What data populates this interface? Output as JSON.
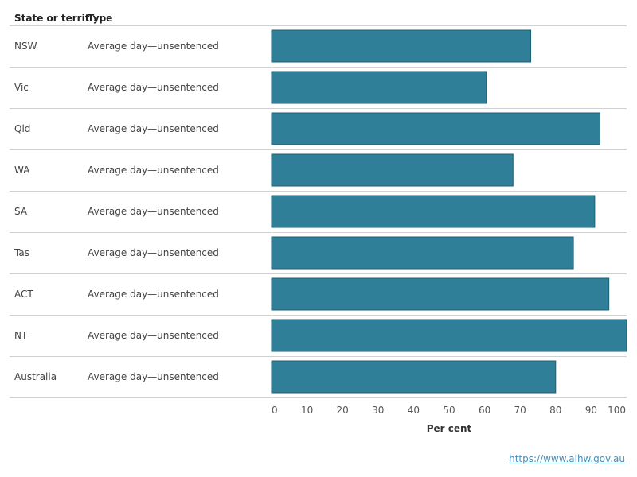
{
  "header": {
    "col1": "State or territ..",
    "col2": "Type"
  },
  "source_link": "https://www.aihw.gov.au",
  "colors": {
    "bar": "#2e7f97",
    "bar_stroke": "#1f5f73",
    "grid": "#d0d0d0",
    "axis": "#888888"
  },
  "chart_data": {
    "type": "bar",
    "orientation": "horizontal",
    "categories": [
      "NSW",
      "Vic",
      "Qld",
      "WA",
      "SA",
      "Tas",
      "ACT",
      "NT",
      "Australia"
    ],
    "type_labels": [
      "Average day—unsentenced",
      "Average day—unsentenced",
      "Average day—unsentenced",
      "Average day—unsentenced",
      "Average day—unsentenced",
      "Average day—unsentenced",
      "Average day—unsentenced",
      "Average day—unsentenced",
      "Average day—unsentenced"
    ],
    "values": [
      73,
      60.5,
      92.5,
      68,
      91,
      85,
      95,
      100,
      80
    ],
    "xlabel": "Per cent",
    "xlim": [
      0,
      100
    ],
    "xticks": [
      0,
      10,
      20,
      30,
      40,
      50,
      60,
      70,
      80,
      90,
      100
    ]
  }
}
